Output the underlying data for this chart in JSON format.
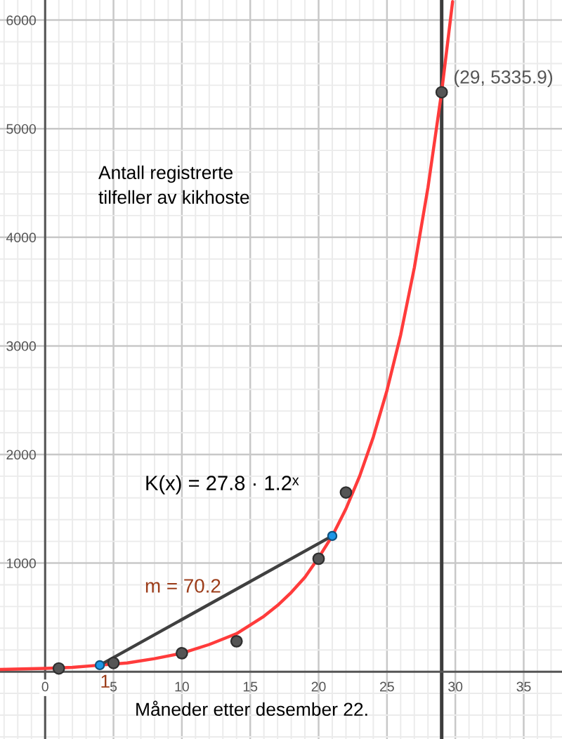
{
  "chart_data": {
    "type": "line",
    "title": "Antall registrerte\ntilfeller av kikhoste",
    "xlabel": "Måneder etter desember 22.",
    "xlim": [
      -3.3,
      37.8
    ],
    "ylim": [
      -620,
      6185
    ],
    "xticks": [
      {
        "value": -3,
        "label": null
      },
      {
        "value": -2,
        "label": null
      },
      {
        "value": -1,
        "label": null
      },
      0,
      {
        "value": 1,
        "label": null
      },
      {
        "value": 2,
        "label": null
      },
      {
        "value": 3,
        "label": null
      },
      {
        "value": 4,
        "label": null
      },
      5,
      {
        "value": 6,
        "label": null
      },
      {
        "value": 7,
        "label": null
      },
      {
        "value": 8,
        "label": null
      },
      {
        "value": 9,
        "label": null
      },
      10,
      {
        "value": 11,
        "label": null
      },
      {
        "value": 12,
        "label": null
      },
      {
        "value": 13,
        "label": null
      },
      {
        "value": 14,
        "label": null
      },
      15,
      {
        "value": 16,
        "label": null
      },
      {
        "value": 17,
        "label": null
      },
      {
        "value": 18,
        "label": null
      },
      {
        "value": 19,
        "label": null
      },
      20,
      {
        "value": 21,
        "label": null
      },
      {
        "value": 22,
        "label": null
      },
      {
        "value": 23,
        "label": null
      },
      {
        "value": 24,
        "label": null
      },
      25,
      {
        "value": 26,
        "label": null
      },
      {
        "value": 27,
        "label": null
      },
      {
        "value": 28,
        "label": null
      },
      {
        "value": 29,
        "label": null
      },
      30,
      {
        "value": 31,
        "label": null
      },
      {
        "value": 32,
        "label": null
      },
      {
        "value": 33,
        "label": null
      },
      {
        "value": 34,
        "label": null
      },
      35,
      {
        "value": 36,
        "label": null
      },
      {
        "value": 37,
        "label": null
      }
    ],
    "yticks": [
      {
        "value": -600,
        "label": null
      },
      {
        "value": -400,
        "label": null
      },
      {
        "value": -200,
        "label": null
      },
      {
        "value": 0,
        "label": null
      },
      {
        "value": 200,
        "label": null
      },
      {
        "value": 400,
        "label": null
      },
      {
        "value": 600,
        "label": null
      },
      {
        "value": 800,
        "label": null
      },
      1000,
      {
        "value": 1200,
        "label": null
      },
      {
        "value": 1400,
        "label": null
      },
      {
        "value": 1600,
        "label": null
      },
      {
        "value": 1800,
        "label": null
      },
      2000,
      {
        "value": 2200,
        "label": null
      },
      {
        "value": 2400,
        "label": null
      },
      {
        "value": 2600,
        "label": null
      },
      {
        "value": 2800,
        "label": null
      },
      3000,
      {
        "value": 3200,
        "label": null
      },
      {
        "value": 3400,
        "label": null
      },
      {
        "value": 3600,
        "label": null
      },
      {
        "value": 3800,
        "label": null
      },
      4000,
      {
        "value": 4200,
        "label": null
      },
      {
        "value": 4400,
        "label": null
      },
      {
        "value": 4600,
        "label": null
      },
      {
        "value": 4800,
        "label": null
      },
      5000,
      {
        "value": 5200,
        "label": null
      },
      {
        "value": 5400,
        "label": null
      },
      {
        "value": 5600,
        "label": null
      },
      {
        "value": 5800,
        "label": null
      },
      6000
    ],
    "grid": true,
    "series": [
      {
        "color": "#ff3b3b",
        "x": [
          -3.3,
          0,
          2,
          4,
          6,
          8,
          10,
          12,
          14,
          16,
          17,
          18,
          19,
          20,
          21,
          22,
          23,
          24,
          25,
          26,
          27,
          28,
          29,
          29.8
        ],
        "values": [
          20,
          30,
          40,
          60,
          80,
          120,
          170,
          250,
          350,
          510,
          610,
          730,
          870,
          1050,
          1250,
          1500,
          1800,
          2160,
          2590,
          3100,
          3720,
          4460,
          5340,
          6170
        ]
      },
      {
        "color": "#404040",
        "x": [
          4,
          21
        ],
        "values": [
          60,
          1250
        ]
      },
      {
        "type": "scatter",
        "marker": "circle",
        "color": "#555555",
        "x": [
          1,
          5,
          10,
          14,
          20,
          22
        ],
        "values": [
          30,
          80,
          170,
          280,
          1040,
          1650
        ]
      },
      {
        "type": "scatter",
        "marker": "circle",
        "color": "#555555",
        "x": [
          29
        ],
        "values": [
          5335.9
        ]
      },
      {
        "type": "scatter",
        "marker": "circle",
        "color": "#1e96e6",
        "x": [
          4,
          21
        ],
        "values": [
          60,
          1250
        ]
      }
    ],
    "ref_lines": [
      {
        "axis": "x",
        "value": 29,
        "color": "#3c3c3c"
      }
    ],
    "annotations": [
      "K(x) = 27.8 · 1.2ˣ",
      "m = 70.2",
      "1",
      {
        "text": "(29, 5335.9)",
        "x": 29,
        "y": 5335.9
      }
    ]
  }
}
